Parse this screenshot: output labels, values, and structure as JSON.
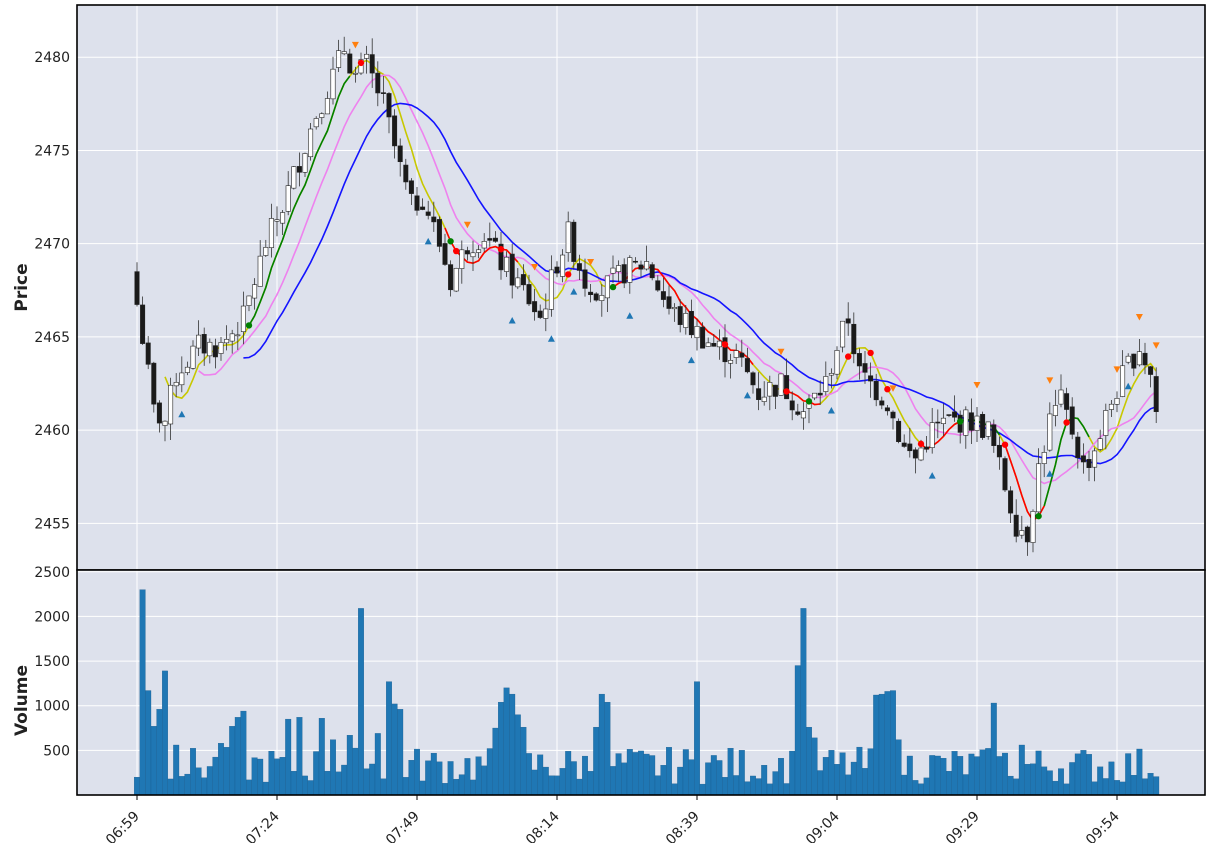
{
  "chart_data": [
    {
      "type": "candlestick",
      "ylabel": "Price",
      "ylim": [
        2452.5,
        2482.8
      ],
      "yticks": [
        "2455",
        "2460",
        "2465",
        "2470",
        "2475",
        "2480"
      ],
      "grid": true,
      "series": [
        {
          "name": "",
          "type": "ohlc",
          "color_up": "#ffffff",
          "color_down": "#1a1a1a"
        },
        {
          "type": "line",
          "color": "#c8c800"
        },
        {
          "type": "line",
          "color": "#ee82ee"
        },
        {
          "type": "line",
          "color": "#1414ff"
        },
        {
          "type": "line",
          "color": "#008000"
        },
        {
          "type": "line",
          "color": "#ff0000"
        },
        {
          "type": "markers",
          "marker": "triangle-up",
          "color": "#1f77b4"
        },
        {
          "type": "markers",
          "marker": "triangle-down",
          "color": "#ff7f0e"
        }
      ]
    },
    {
      "type": "bar",
      "ylabel": "Volume",
      "ylim": [
        0,
        2520
      ],
      "yticks": [
        "500",
        "1000",
        "1500",
        "2000",
        "2500"
      ],
      "grid": true,
      "bar_color": "#1f77b4"
    }
  ],
  "xaxis": {
    "tick_labels": [
      "06:59",
      "07:24",
      "07:49",
      "08:14",
      "08:39",
      "09:04",
      "09:29",
      "09:54"
    ]
  }
}
